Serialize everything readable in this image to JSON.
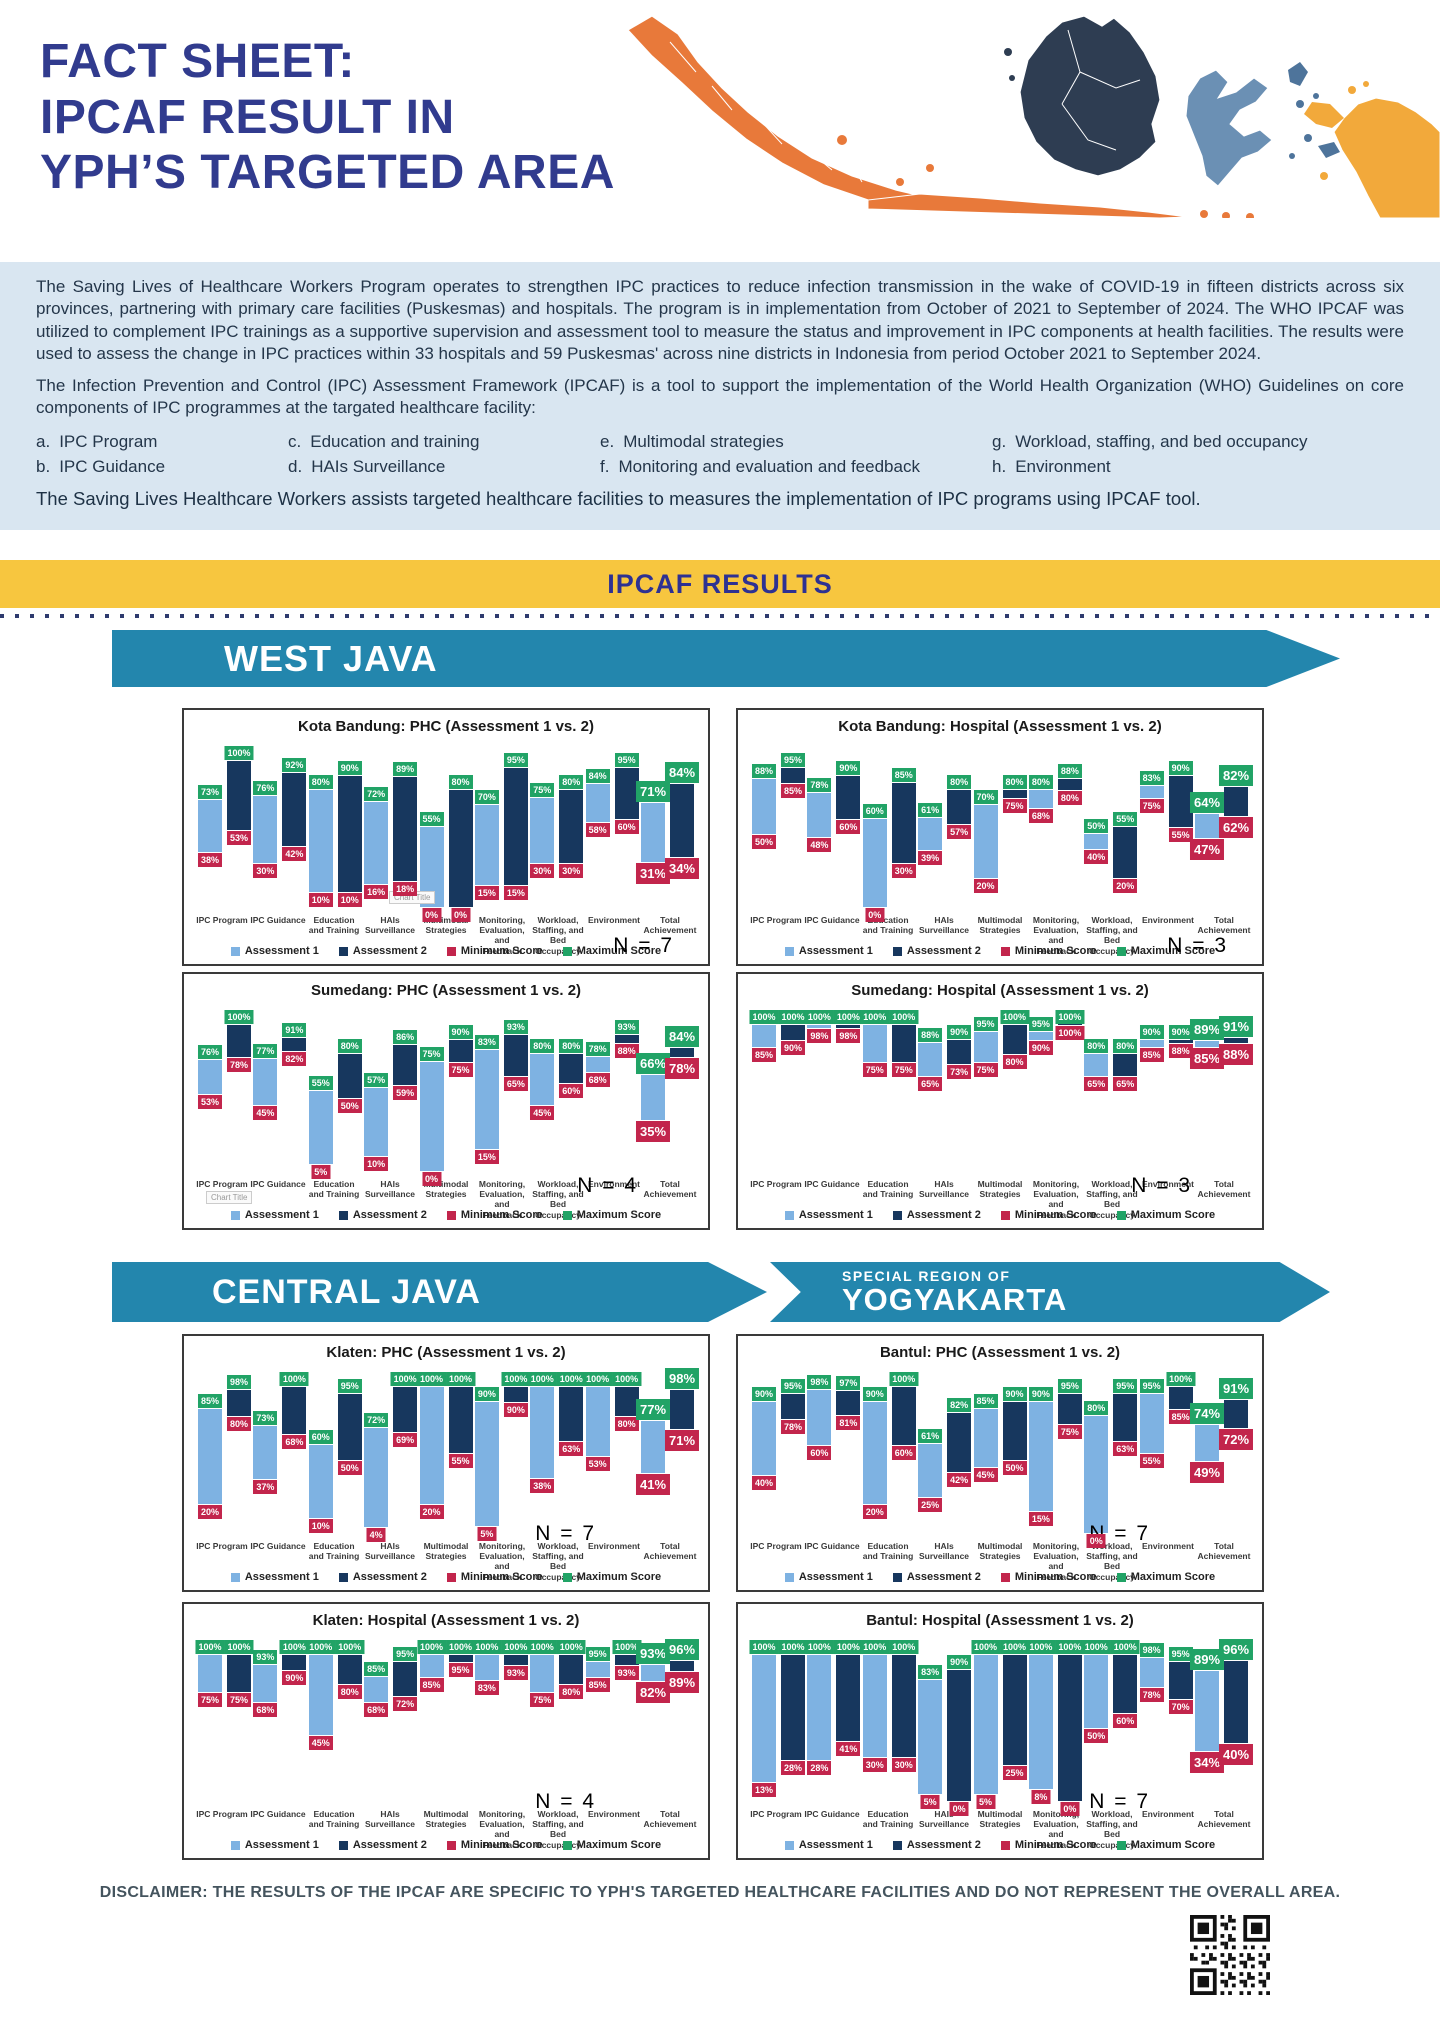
{
  "header": {
    "title_lines": [
      "FACT SHEET:",
      "IPCAF RESULT IN",
      "YPH’S TARGETED AREA"
    ]
  },
  "intro": {
    "paragraph1": "The Saving Lives of Healthcare Workers Program operates to strengthen IPC practices to reduce infection transmission in the wake of COVID-19 in fifteen districts across six provinces, partnering with primary care facilities (Puskesmas) and hospitals. The program is in implementation from October of 2021 to September of 2024. The WHO IPCAF was utilized to complement IPC trainings as a supportive supervision and assessment tool to measure the status and improvement in IPC components at health facilities. The results were used to assess the change in IPC practices within 33 hospitals and 59 Puskesmas' across nine districts in Indonesia from period October 2021 to September 2024.",
    "paragraph2": "The Infection Prevention and Control (IPC) Assessment Framework (IPCAF) is a tool to support the implementation of the World Health Organization (WHO) Guidelines on core components of IPC programmes at the targated healthcare facility:",
    "components": [
      {
        "key": "a.",
        "label": "IPC Program"
      },
      {
        "key": "b.",
        "label": "IPC Guidance"
      },
      {
        "key": "c.",
        "label": "Education and training"
      },
      {
        "key": "d.",
        "label": "HAIs Surveillance"
      },
      {
        "key": "e.",
        "label": "Multimodal strategies"
      },
      {
        "key": "f.",
        "label": "Monitoring and evaluation and feedback"
      },
      {
        "key": "g.",
        "label": "Workload, staffing, and bed occupancy"
      },
      {
        "key": "h.",
        "label": "Environment"
      }
    ],
    "closing": "The Saving Lives Healthcare Workers assists targeted healthcare facilities to measures the implementation of IPC programs using IPCAF tool."
  },
  "section_banner": "IPCAF RESULTS",
  "regions": [
    {
      "name": "WEST JAVA"
    },
    {
      "name": "CENTRAL JAVA"
    },
    {
      "kicker": "SPECIAL REGION OF",
      "name": "YOGYAKARTA"
    }
  ],
  "legend": [
    "Assessment 1",
    "Assessment 2",
    "Minimum Score",
    "Maximum Score"
  ],
  "disclaimer": "DISCLAIMER: THE RESULTS OF THE IPCAF ARE SPECIFIC TO YPH'S TARGETED HEALTHCARE FACILITIES AND DO NOT REPRESENT THE OVERALL AREA.",
  "colors": {
    "assessment1": "#7EB2E2",
    "assessment2": "#17375E",
    "minimum_score": "#C2254C",
    "maximum_score": "#21A366",
    "region_banner": "#2386AD",
    "yellow_band": "#F7C63F",
    "title_navy": "#313B8E"
  },
  "chart_data": [
    {
      "type": "bar",
      "title": "Kota Bandung: PHC (Assessment 1 vs. 2)",
      "n_label": "N = 7",
      "ylim": [
        0,
        100
      ],
      "n_pos": "legend",
      "artifact": "Chart Title",
      "artifact_pos": "axis",
      "categories": [
        "IPC Program",
        "IPC Guidance",
        "Education and Training",
        "HAIs Surveillance",
        "Multimodal Strategies",
        "Monitoring, Evaluation, and Feedback",
        "Workload, Staffing, and Bed Occupancy",
        "Environment",
        "Total Achievement"
      ],
      "series": [
        {
          "name": "Assessment 1",
          "max": [
            73,
            76,
            80,
            72,
            55,
            70,
            75,
            84,
            71
          ],
          "min": [
            38,
            30,
            10,
            16,
            0,
            15,
            30,
            58,
            31
          ]
        },
        {
          "name": "Assessment 2",
          "max": [
            100,
            92,
            90,
            89,
            80,
            95,
            80,
            95,
            84
          ],
          "min": [
            53,
            42,
            10,
            18,
            0,
            15,
            30,
            60,
            34
          ]
        }
      ]
    },
    {
      "type": "bar",
      "title": "Kota Bandung: Hospital (Assessment 1 vs. 2)",
      "n_label": "N = 3",
      "ylim": [
        0,
        100
      ],
      "n_pos": "legend",
      "categories": [
        "IPC Program",
        "IPC Guidance",
        "Education and Training",
        "HAIs Surveillance",
        "Multimodal Strategies",
        "Monitoring, Evaluation, and Feedback",
        "Workload, Staffing, and Bed Occupancy",
        "Environment",
        "Total Achievement"
      ],
      "series": [
        {
          "name": "Assessment 1",
          "max": [
            88,
            78,
            60,
            61,
            70,
            80,
            50,
            83,
            64
          ],
          "min": [
            50,
            48,
            0,
            39,
            20,
            68,
            40,
            75,
            47
          ]
        },
        {
          "name": "Assessment 2",
          "max": [
            95,
            90,
            85,
            80,
            80,
            88,
            55,
            90,
            82
          ],
          "min": [
            85,
            60,
            30,
            57,
            75,
            80,
            20,
            55,
            62
          ]
        }
      ]
    },
    {
      "type": "bar",
      "title": "Sumedang: PHC (Assessment 1 vs. 2)",
      "n_label": "N = 4",
      "ylim": [
        0,
        100
      ],
      "n_pos": "above",
      "artifact": "Chart Title",
      "artifact_pos": "legend",
      "categories": [
        "IPC Program",
        "IPC Guidance",
        "Education and Training",
        "HAIs Surveillance",
        "Multimodal Strategies",
        "Monitoring, Evaluation, and Feedback",
        "Workload, Staffing, and Bed Occupancy",
        "Environment",
        "Total Achievement"
      ],
      "series": [
        {
          "name": "Assessment 1",
          "max": [
            76,
            77,
            55,
            57,
            75,
            83,
            80,
            78,
            66
          ],
          "min": [
            53,
            45,
            5,
            10,
            0,
            15,
            45,
            68,
            35
          ]
        },
        {
          "name": "Assessment 2",
          "max": [
            100,
            91,
            80,
            86,
            90,
            93,
            80,
            93,
            84
          ],
          "min": [
            78,
            82,
            50,
            59,
            75,
            65,
            60,
            88,
            78
          ]
        }
      ]
    },
    {
      "type": "bar",
      "title": "Sumedang: Hospital (Assessment 1 vs. 2)",
      "n_label": "N = 3",
      "ylim": [
        0,
        100
      ],
      "n_pos": "above",
      "categories": [
        "IPC Program",
        "IPC Guidance",
        "Education and Training",
        "HAIs Surveillance",
        "Multimodal Strategies",
        "Monitoring, Evaluation, and Feedback",
        "Workload, Staffing, and Bed Occupancy",
        "Environment",
        "Total Achievement"
      ],
      "series": [
        {
          "name": "Assessment 1",
          "max": [
            100,
            100,
            100,
            88,
            95,
            95,
            80,
            90,
            89
          ],
          "min": [
            85,
            98,
            75,
            65,
            75,
            90,
            65,
            85,
            85
          ]
        },
        {
          "name": "Assessment 2",
          "max": [
            100,
            100,
            100,
            90,
            100,
            100,
            80,
            90,
            91
          ],
          "min": [
            90,
            98,
            75,
            73,
            80,
            100,
            65,
            88,
            88
          ]
        }
      ]
    },
    {
      "type": "bar",
      "title": "Klaten: PHC (Assessment 1 vs. 2)",
      "n_label": "N = 7",
      "ylim": [
        0,
        100
      ],
      "n_pos": "axis",
      "categories": [
        "IPC Program",
        "IPC Guidance",
        "Education and Training",
        "HAIs Surveillance",
        "Multimodal Strategies",
        "Monitoring, Evaluation, and Feedback",
        "Workload, Staffing, and Bed Occupancy",
        "Environment",
        "Total Achievement"
      ],
      "series": [
        {
          "name": "Assessment 1",
          "max": [
            85,
            73,
            60,
            72,
            100,
            90,
            100,
            100,
            77
          ],
          "min": [
            20,
            37,
            10,
            4,
            20,
            5,
            38,
            53,
            41
          ]
        },
        {
          "name": "Assessment 2",
          "max": [
            98,
            100,
            95,
            100,
            100,
            100,
            100,
            100,
            98
          ],
          "min": [
            80,
            68,
            50,
            69,
            55,
            90,
            63,
            80,
            71
          ]
        }
      ]
    },
    {
      "type": "bar",
      "title": "Bantul: PHC (Assessment 1 vs. 2)",
      "n_label": "N = 7",
      "ylim": [
        0,
        100
      ],
      "n_pos": "axis",
      "categories": [
        "IPC Program",
        "IPC Guidance",
        "Education and Training",
        "HAIs Surveillance",
        "Multimodal Strategies",
        "Monitoring, Evaluation, and Feedback",
        "Workload, Staffing, and Bed Occupancy",
        "Environment",
        "Total Achievement"
      ],
      "series": [
        {
          "name": "Assessment 1",
          "max": [
            90,
            98,
            90,
            61,
            85,
            90,
            80,
            95,
            74
          ],
          "min": [
            40,
            60,
            20,
            25,
            45,
            15,
            0,
            55,
            49
          ]
        },
        {
          "name": "Assessment 2",
          "max": [
            95,
            97,
            100,
            82,
            90,
            95,
            95,
            100,
            91
          ],
          "min": [
            78,
            81,
            60,
            42,
            50,
            75,
            63,
            85,
            72
          ]
        }
      ]
    },
    {
      "type": "bar",
      "title": "Klaten: Hospital (Assessment 1 vs. 2)",
      "n_label": "N = 4",
      "ylim": [
        0,
        100
      ],
      "n_pos": "axis",
      "categories": [
        "IPC Program",
        "IPC Guidance",
        "Education and Training",
        "HAIs Surveillance",
        "Multimodal Strategies",
        "Monitoring, Evaluation, and Feedback",
        "Workload, Staffing, and Bed Occupancy",
        "Environment",
        "Total Achievement"
      ],
      "series": [
        {
          "name": "Assessment 1",
          "max": [
            100,
            93,
            100,
            85,
            100,
            100,
            100,
            95,
            93
          ],
          "min": [
            75,
            68,
            45,
            68,
            85,
            83,
            75,
            85,
            82
          ]
        },
        {
          "name": "Assessment 2",
          "max": [
            100,
            100,
            100,
            95,
            100,
            100,
            100,
            100,
            96
          ],
          "min": [
            75,
            90,
            80,
            72,
            95,
            93,
            80,
            93,
            89
          ]
        }
      ]
    },
    {
      "type": "bar",
      "title": "Bantul: Hospital (Assessment 1 vs. 2)",
      "n_label": "N = 7",
      "ylim": [
        0,
        100
      ],
      "n_pos": "axis",
      "categories": [
        "IPC Program",
        "IPC Guidance",
        "Education and Training",
        "HAIs Surveillance",
        "Multimodal Strategies",
        "Monitoring, Evaluation, and Feedback",
        "Workload, Staffing, and Bed Occupancy",
        "Environment",
        "Total Achievement"
      ],
      "series": [
        {
          "name": "Assessment 1",
          "max": [
            100,
            100,
            100,
            83,
            100,
            100,
            100,
            98,
            89
          ],
          "min": [
            13,
            28,
            30,
            5,
            5,
            8,
            50,
            78,
            34
          ]
        },
        {
          "name": "Assessment 2",
          "max": [
            100,
            100,
            100,
            90,
            100,
            100,
            100,
            95,
            96
          ],
          "min": [
            28,
            41,
            30,
            0,
            25,
            0,
            60,
            70,
            40
          ]
        }
      ]
    }
  ]
}
